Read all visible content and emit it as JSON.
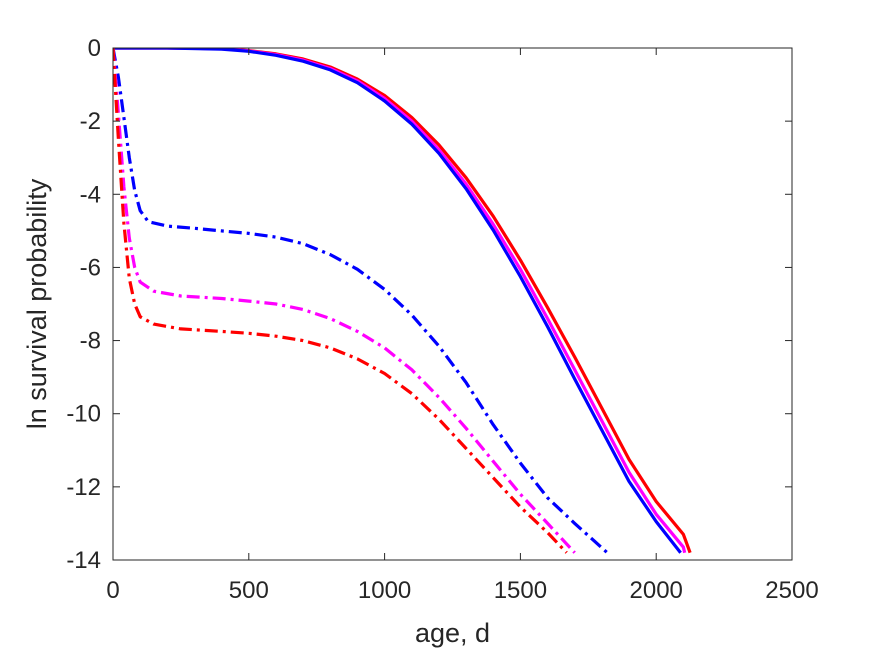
{
  "chart_data": {
    "type": "line",
    "xlabel": "age, d",
    "ylabel": "ln survival probability",
    "xlim": [
      0,
      2500
    ],
    "ylim": [
      -14,
      0
    ],
    "xticks": [
      0,
      500,
      1000,
      1500,
      2000,
      2500
    ],
    "yticks": [
      0,
      -2,
      -4,
      -6,
      -8,
      -10,
      -12,
      -14
    ],
    "grid": false,
    "legend": "none",
    "series": [
      {
        "color": "#ff0000",
        "style": "solid",
        "points": [
          [
            0,
            0
          ],
          [
            200,
            0
          ],
          [
            400,
            -0.02
          ],
          [
            500,
            -0.07
          ],
          [
            600,
            -0.16
          ],
          [
            700,
            -0.3
          ],
          [
            800,
            -0.52
          ],
          [
            900,
            -0.85
          ],
          [
            1000,
            -1.3
          ],
          [
            1100,
            -1.9
          ],
          [
            1200,
            -2.65
          ],
          [
            1300,
            -3.55
          ],
          [
            1400,
            -4.6
          ],
          [
            1500,
            -5.8
          ],
          [
            1600,
            -7.1
          ],
          [
            1700,
            -8.45
          ],
          [
            1800,
            -9.85
          ],
          [
            1900,
            -11.25
          ],
          [
            2000,
            -12.4
          ],
          [
            2100,
            -13.3
          ],
          [
            2125,
            -13.8
          ]
        ]
      },
      {
        "color": "#ff00ff",
        "style": "solid",
        "points": [
          [
            0,
            0
          ],
          [
            200,
            0
          ],
          [
            400,
            -0.02
          ],
          [
            500,
            -0.08
          ],
          [
            600,
            -0.18
          ],
          [
            700,
            -0.33
          ],
          [
            800,
            -0.56
          ],
          [
            900,
            -0.9
          ],
          [
            1000,
            -1.38
          ],
          [
            1100,
            -2.0
          ],
          [
            1200,
            -2.78
          ],
          [
            1300,
            -3.72
          ],
          [
            1400,
            -4.82
          ],
          [
            1500,
            -6.05
          ],
          [
            1600,
            -7.4
          ],
          [
            1700,
            -8.8
          ],
          [
            1800,
            -10.2
          ],
          [
            1900,
            -11.6
          ],
          [
            2000,
            -12.75
          ],
          [
            2100,
            -13.65
          ],
          [
            2105,
            -13.8
          ]
        ]
      },
      {
        "color": "#0000ff",
        "style": "solid",
        "points": [
          [
            0,
            0
          ],
          [
            200,
            0
          ],
          [
            400,
            -0.03
          ],
          [
            500,
            -0.09
          ],
          [
            600,
            -0.2
          ],
          [
            700,
            -0.36
          ],
          [
            800,
            -0.6
          ],
          [
            900,
            -0.95
          ],
          [
            1000,
            -1.45
          ],
          [
            1100,
            -2.08
          ],
          [
            1200,
            -2.88
          ],
          [
            1300,
            -3.85
          ],
          [
            1400,
            -4.98
          ],
          [
            1500,
            -6.25
          ],
          [
            1600,
            -7.62
          ],
          [
            1700,
            -9.05
          ],
          [
            1800,
            -10.45
          ],
          [
            1900,
            -11.85
          ],
          [
            2000,
            -12.95
          ],
          [
            2090,
            -13.8
          ]
        ]
      },
      {
        "color": "#0000ff",
        "style": "dashdot",
        "points": [
          [
            0,
            0
          ],
          [
            20,
            -0.8
          ],
          [
            40,
            -1.9
          ],
          [
            60,
            -3.0
          ],
          [
            80,
            -3.9
          ],
          [
            100,
            -4.45
          ],
          [
            130,
            -4.75
          ],
          [
            200,
            -4.87
          ],
          [
            300,
            -4.93
          ],
          [
            400,
            -5.0
          ],
          [
            500,
            -5.07
          ],
          [
            600,
            -5.17
          ],
          [
            700,
            -5.35
          ],
          [
            800,
            -5.65
          ],
          [
            900,
            -6.05
          ],
          [
            1000,
            -6.6
          ],
          [
            1100,
            -7.3
          ],
          [
            1200,
            -8.15
          ],
          [
            1300,
            -9.15
          ],
          [
            1400,
            -10.3
          ],
          [
            1500,
            -11.35
          ],
          [
            1600,
            -12.3
          ],
          [
            1700,
            -13.0
          ],
          [
            1820,
            -13.8
          ]
        ]
      },
      {
        "color": "#ff00ff",
        "style": "dashdot",
        "points": [
          [
            0,
            0
          ],
          [
            20,
            -1.8
          ],
          [
            40,
            -3.8
          ],
          [
            60,
            -5.2
          ],
          [
            80,
            -6.0
          ],
          [
            100,
            -6.4
          ],
          [
            150,
            -6.65
          ],
          [
            250,
            -6.78
          ],
          [
            400,
            -6.85
          ],
          [
            500,
            -6.92
          ],
          [
            600,
            -7.0
          ],
          [
            700,
            -7.15
          ],
          [
            800,
            -7.4
          ],
          [
            900,
            -7.75
          ],
          [
            1000,
            -8.2
          ],
          [
            1100,
            -8.8
          ],
          [
            1200,
            -9.55
          ],
          [
            1300,
            -10.4
          ],
          [
            1400,
            -11.3
          ],
          [
            1500,
            -12.2
          ],
          [
            1600,
            -13.0
          ],
          [
            1700,
            -13.8
          ]
        ]
      },
      {
        "color": "#ff0000",
        "style": "dashdot",
        "points": [
          [
            0,
            0
          ],
          [
            20,
            -2.5
          ],
          [
            40,
            -4.8
          ],
          [
            60,
            -6.3
          ],
          [
            80,
            -7.0
          ],
          [
            100,
            -7.35
          ],
          [
            150,
            -7.55
          ],
          [
            250,
            -7.68
          ],
          [
            400,
            -7.75
          ],
          [
            500,
            -7.8
          ],
          [
            600,
            -7.88
          ],
          [
            700,
            -8.0
          ],
          [
            800,
            -8.2
          ],
          [
            900,
            -8.5
          ],
          [
            1000,
            -8.9
          ],
          [
            1100,
            -9.45
          ],
          [
            1200,
            -10.15
          ],
          [
            1300,
            -10.95
          ],
          [
            1400,
            -11.75
          ],
          [
            1500,
            -12.55
          ],
          [
            1600,
            -13.25
          ],
          [
            1670,
            -13.8
          ]
        ]
      }
    ]
  }
}
